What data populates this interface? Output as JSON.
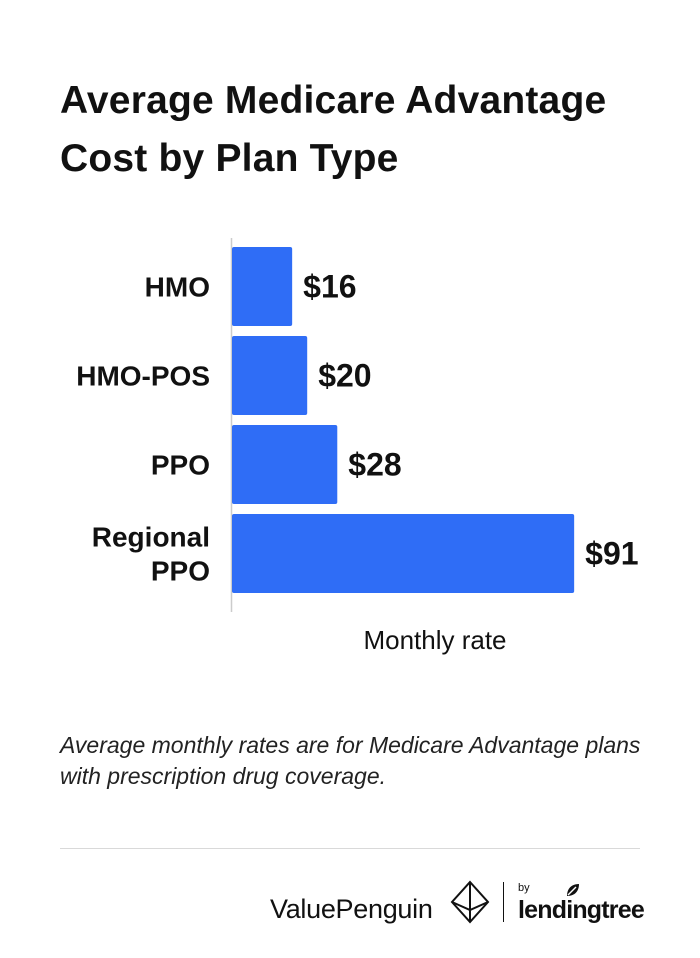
{
  "title": "Average Medicare Advantage Cost by Plan Type",
  "note": "Average monthly rates are for Medicare Advantage plans with prescription drug coverage.",
  "brand": {
    "valuepenguin": "ValuePenguin",
    "by": "by",
    "lendingtree": "lendingtree"
  },
  "icons": {
    "valuepenguin": "penguin-diamond-icon",
    "lendingtree": "leaf-icon"
  },
  "colors": {
    "bar": "#2f6df6",
    "text": "#111111",
    "axis": "#cccccc"
  },
  "chart_data": {
    "type": "bar",
    "orientation": "horizontal",
    "categories": [
      "HMO",
      "HMO-POS",
      "PPO",
      "Regional PPO"
    ],
    "category_lines": [
      [
        "HMO"
      ],
      [
        "HMO-POS"
      ],
      [
        "PPO"
      ],
      [
        "Regional",
        "PPO"
      ]
    ],
    "values": [
      16,
      20,
      28,
      91
    ],
    "value_labels": [
      "$16",
      "$20",
      "$28",
      "$91"
    ],
    "xlabel": "Monthly rate",
    "ylabel": "",
    "xlim": [
      0,
      100
    ],
    "grid": false,
    "legend": "none"
  }
}
